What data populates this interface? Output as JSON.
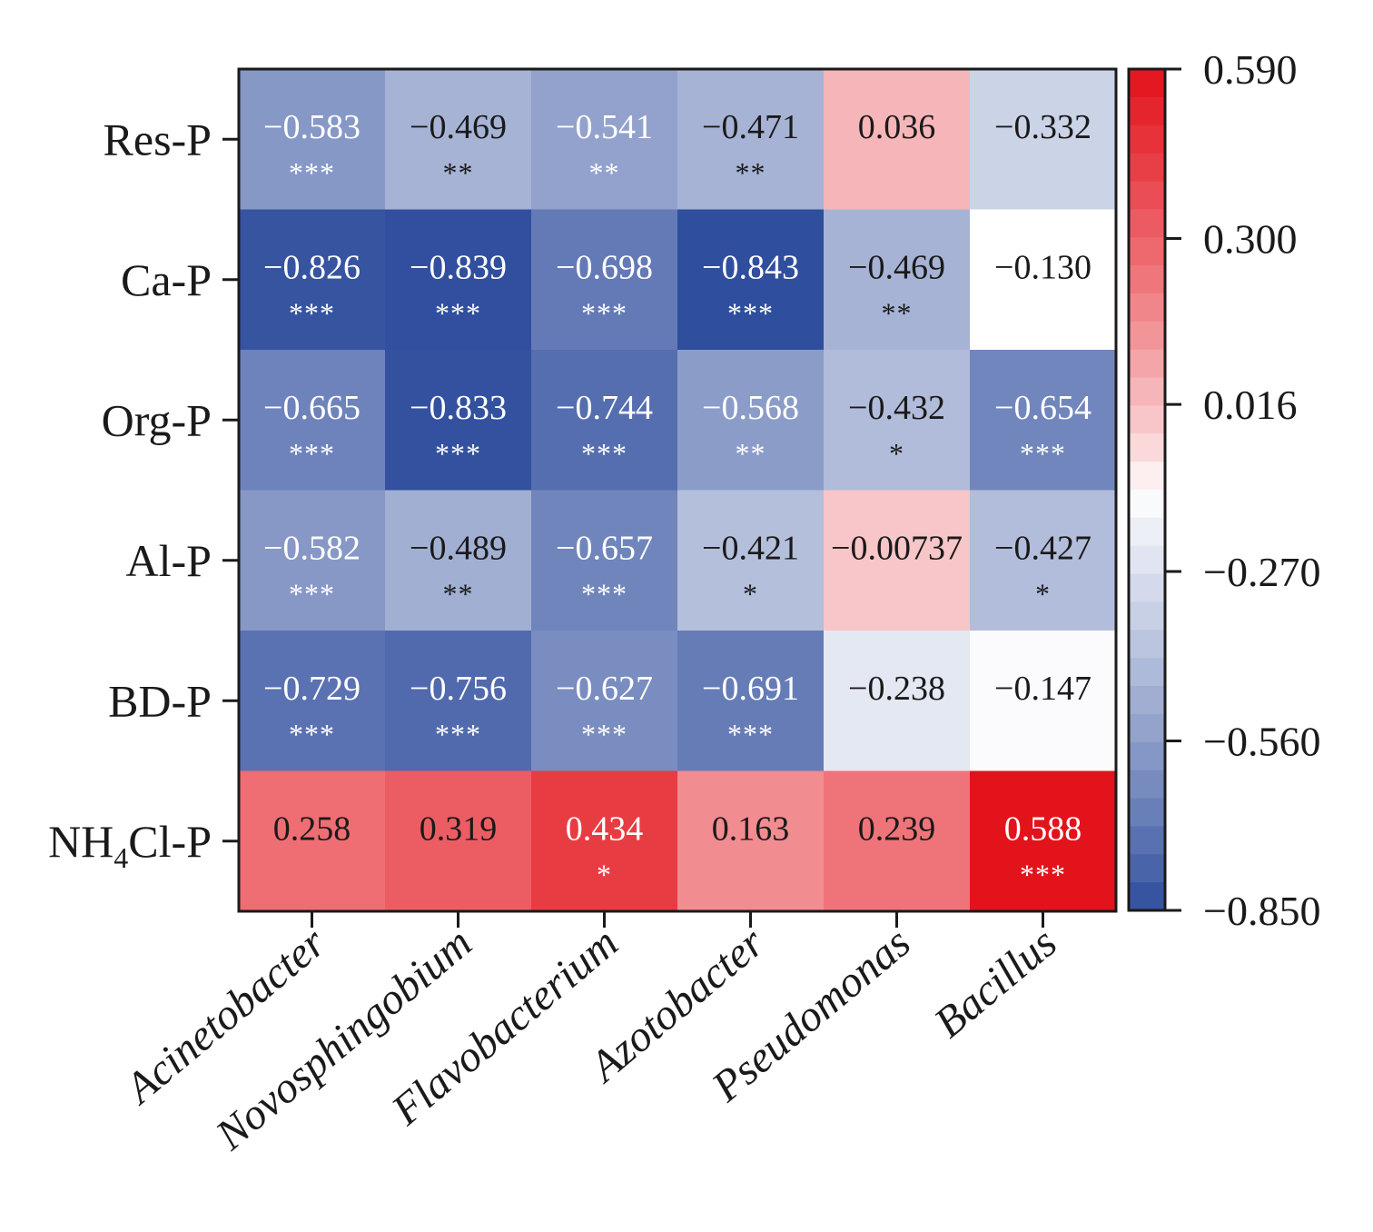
{
  "chart_data": {
    "type": "heatmap",
    "title": "",
    "rows": [
      "Res-P",
      "Ca-P",
      "Org-P",
      "Al-P",
      "BD-P",
      "NH4Cl-P"
    ],
    "row_labels_display": [
      {
        "main": "Res-P"
      },
      {
        "main": "Ca-P"
      },
      {
        "main": "Org-P"
      },
      {
        "main": "Al-P"
      },
      {
        "main": "BD-P"
      },
      {
        "main": "NH",
        "sub": "4",
        "rest": "Cl-P"
      }
    ],
    "columns": [
      "Acinetobacter",
      "Novosphingobium",
      "Flavobacterium",
      "Azotobacter",
      "Pseudomonas",
      "Bacillus"
    ],
    "values": [
      [
        -0.583,
        -0.469,
        -0.541,
        -0.471,
        0.036,
        -0.332
      ],
      [
        -0.826,
        -0.839,
        -0.698,
        -0.843,
        -0.469,
        -0.13
      ],
      [
        -0.665,
        -0.833,
        -0.744,
        -0.568,
        -0.432,
        -0.654
      ],
      [
        -0.582,
        -0.489,
        -0.657,
        -0.421,
        -0.00737,
        -0.427
      ],
      [
        -0.729,
        -0.756,
        -0.627,
        -0.691,
        -0.238,
        -0.147
      ],
      [
        0.258,
        0.319,
        0.434,
        0.163,
        0.239,
        0.588
      ]
    ],
    "value_labels": [
      [
        "−0.583",
        "−0.469",
        "−0.541",
        "−0.471",
        "0.036",
        "−0.332"
      ],
      [
        "−0.826",
        "−0.839",
        "−0.698",
        "−0.843",
        "−0.469",
        "−0.130"
      ],
      [
        "−0.665",
        "−0.833",
        "−0.744",
        "−0.568",
        "−0.432",
        "−0.654"
      ],
      [
        "−0.582",
        "−0.489",
        "−0.657",
        "−0.421",
        "−0.00737",
        "−0.427"
      ],
      [
        "−0.729",
        "−0.756",
        "−0.627",
        "−0.691",
        "−0.238",
        "−0.147"
      ],
      [
        "0.258",
        "0.319",
        "0.434",
        "0.163",
        "0.239",
        "0.588"
      ]
    ],
    "significance": [
      [
        "***",
        "**",
        "**",
        "**",
        "",
        ""
      ],
      [
        "***",
        "***",
        "***",
        "***",
        "**",
        ""
      ],
      [
        "***",
        "***",
        "***",
        "**",
        "*",
        "***"
      ],
      [
        "***",
        "**",
        "***",
        "*",
        "",
        "*"
      ],
      [
        "***",
        "***",
        "***",
        "***",
        "",
        ""
      ],
      [
        "",
        "",
        "*",
        "",
        "",
        "***"
      ]
    ],
    "colorbar": {
      "min": -0.85,
      "max": 0.59,
      "ticks": [
        0.59,
        0.3,
        0.016,
        -0.27,
        -0.56,
        -0.85
      ],
      "tick_labels": [
        "0.590",
        "0.300",
        "0.016",
        "−0.270",
        "−0.560",
        "−0.850"
      ],
      "steps": 30
    },
    "colors": {
      "low": "#2b4a9b",
      "mid": "#ffffff",
      "high": "#e3121b",
      "text_dark": "#1a1a1a",
      "text_light": "#ffffff",
      "frame": "#1a1a1a"
    }
  }
}
